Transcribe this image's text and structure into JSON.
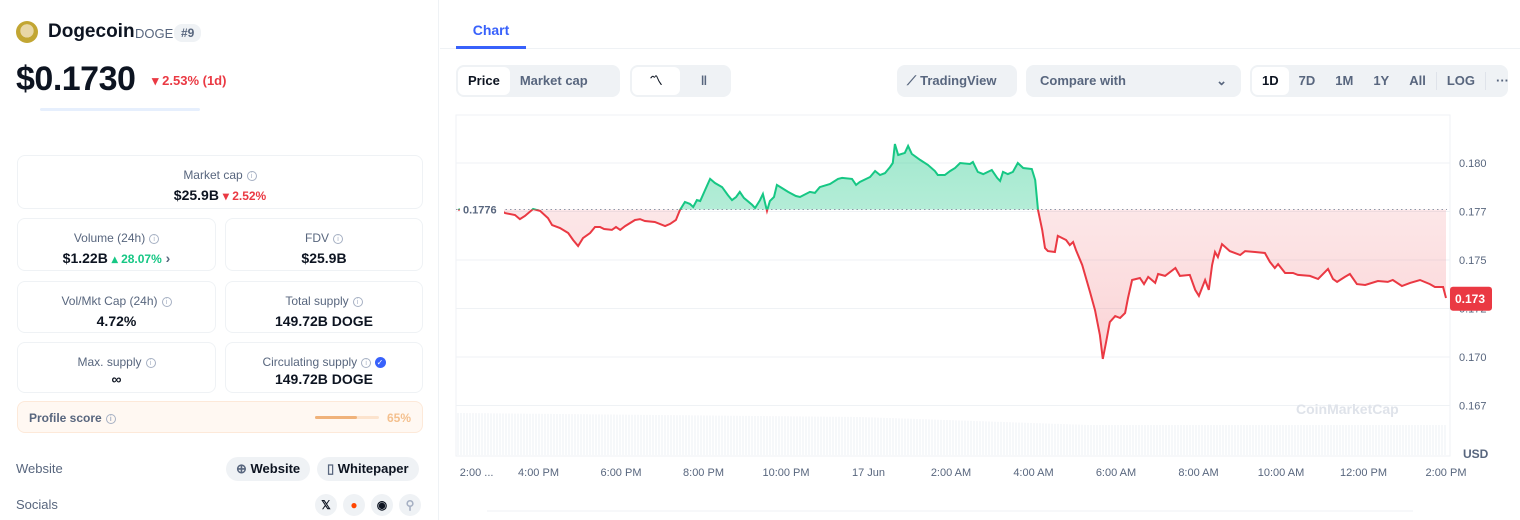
{
  "coin": {
    "name": "Dogecoin",
    "symbol": "DOGE",
    "rank": "#9",
    "price": "$0.1730",
    "change": "2.53% (1d)"
  },
  "stats": {
    "market_cap": {
      "label": "Market cap",
      "value": "$25.9B",
      "change": "2.52%"
    },
    "volume": {
      "label": "Volume (24h)",
      "value": "$1.22B",
      "change": "28.07%"
    },
    "fdv": {
      "label": "FDV",
      "value": "$25.9B"
    },
    "vol_mkt": {
      "label": "Vol/Mkt Cap (24h)",
      "value": "4.72%"
    },
    "total_supply": {
      "label": "Total supply",
      "value": "149.72B DOGE"
    },
    "max_supply": {
      "label": "Max. supply",
      "value": "∞"
    },
    "circ_supply": {
      "label": "Circulating supply",
      "value": "149.72B DOGE"
    },
    "profile_score": {
      "label": "Profile score",
      "value": "65%",
      "fraction": 0.65
    }
  },
  "links": {
    "website_label": "Website",
    "website_btn": "Website",
    "whitepaper_btn": "Whitepaper",
    "socials_label": "Socials",
    "socials": [
      "x-icon",
      "reddit-icon",
      "github-icon",
      "link-icon"
    ]
  },
  "tabs": {
    "chart": "Chart"
  },
  "toolbar": {
    "price": "Price",
    "market_cap": "Market cap",
    "tradingview": "TradingView",
    "compare": "Compare with",
    "ranges": [
      "1D",
      "7D",
      "1M",
      "1Y",
      "All"
    ],
    "log": "LOG",
    "more": "···"
  },
  "colors": {
    "up": "#16c784",
    "down": "#ea3943",
    "accent": "#3861fb"
  },
  "chart_data": {
    "type": "line",
    "currency": "USD",
    "watermark": "CoinMarketCap",
    "baseline": 0.1776,
    "baseline_label": "0.1776",
    "last": 0.173,
    "last_label": "0.173",
    "ylim": [
      0.1652,
      0.1826
    ],
    "yticks": [
      {
        "v": 0.18,
        "label": "0.180"
      },
      {
        "v": 0.1775,
        "label": "0.177"
      },
      {
        "v": 0.175,
        "label": "0.175"
      },
      {
        "v": 0.1725,
        "label": "0.172"
      },
      {
        "v": 0.17,
        "label": "0.170"
      },
      {
        "v": 0.1675,
        "label": "0.167"
      }
    ],
    "xticks": [
      {
        "h": 0.5,
        "label": "2:00 ..."
      },
      {
        "h": 2,
        "label": "4:00 PM"
      },
      {
        "h": 4,
        "label": "6:00 PM"
      },
      {
        "h": 6,
        "label": "8:00 PM"
      },
      {
        "h": 8,
        "label": "10:00 PM"
      },
      {
        "h": 10,
        "label": "17 Jun"
      },
      {
        "h": 12,
        "label": "2:00 AM"
      },
      {
        "h": 14,
        "label": "4:00 AM"
      },
      {
        "h": 16,
        "label": "6:00 AM"
      },
      {
        "h": 18,
        "label": "8:00 AM"
      },
      {
        "h": 20,
        "label": "10:00 AM"
      },
      {
        "h": 22,
        "label": "12:00 PM"
      },
      {
        "h": 24,
        "label": "2:00 PM"
      }
    ],
    "x_unit": "hours since 2:00 PM",
    "points": [
      [
        0.05,
        0.17758
      ],
      [
        0.34,
        0.17773
      ],
      [
        0.58,
        0.17763
      ],
      [
        1.07,
        0.17758
      ],
      [
        1.19,
        0.17742
      ],
      [
        1.43,
        0.17732
      ],
      [
        1.55,
        0.17711
      ],
      [
        1.67,
        0.17727
      ],
      [
        1.87,
        0.17763
      ],
      [
        2.04,
        0.17753
      ],
      [
        2.23,
        0.17716
      ],
      [
        2.33,
        0.1768
      ],
      [
        2.52,
        0.17665
      ],
      [
        2.72,
        0.17639
      ],
      [
        2.84,
        0.17603
      ],
      [
        2.96,
        0.17572
      ],
      [
        3.08,
        0.17613
      ],
      [
        3.25,
        0.17639
      ],
      [
        3.37,
        0.1767
      ],
      [
        3.49,
        0.1767
      ],
      [
        3.59,
        0.1766
      ],
      [
        3.78,
        0.17655
      ],
      [
        3.88,
        0.1767
      ],
      [
        3.98,
        0.17655
      ],
      [
        4.1,
        0.17675
      ],
      [
        4.34,
        0.17706
      ],
      [
        4.46,
        0.17711
      ],
      [
        4.58,
        0.17701
      ],
      [
        4.82,
        0.17696
      ],
      [
        5.07,
        0.17675
      ],
      [
        5.19,
        0.17686
      ],
      [
        5.33,
        0.17706
      ],
      [
        5.43,
        0.17758
      ],
      [
        5.55,
        0.17799
      ],
      [
        5.67,
        0.17789
      ],
      [
        5.75,
        0.17773
      ],
      [
        5.84,
        0.17809
      ],
      [
        5.92,
        0.17804
      ],
      [
        6.04,
        0.17861
      ],
      [
        6.16,
        0.17918
      ],
      [
        6.28,
        0.17897
      ],
      [
        6.45,
        0.17876
      ],
      [
        6.59,
        0.17835
      ],
      [
        6.69,
        0.17809
      ],
      [
        6.79,
        0.17825
      ],
      [
        6.88,
        0.17851
      ],
      [
        6.98,
        0.1782
      ],
      [
        7.18,
        0.17784
      ],
      [
        7.25,
        0.17768
      ],
      [
        7.37,
        0.17809
      ],
      [
        7.44,
        0.1784
      ],
      [
        7.54,
        0.17753
      ],
      [
        7.61,
        0.17804
      ],
      [
        7.71,
        0.17825
      ],
      [
        7.78,
        0.17887
      ],
      [
        7.9,
        0.17871
      ],
      [
        8.05,
        0.17851
      ],
      [
        8.24,
        0.1783
      ],
      [
        8.34,
        0.17825
      ],
      [
        8.58,
        0.17851
      ],
      [
        8.7,
        0.17846
      ],
      [
        8.82,
        0.17876
      ],
      [
        9.07,
        0.17892
      ],
      [
        9.26,
        0.17918
      ],
      [
        9.36,
        0.17923
      ],
      [
        9.6,
        0.17918
      ],
      [
        9.7,
        0.17887
      ],
      [
        9.79,
        0.17902
      ],
      [
        10.04,
        0.17928
      ],
      [
        10.16,
        0.17959
      ],
      [
        10.28,
        0.17938
      ],
      [
        10.4,
        0.17948
      ],
      [
        10.52,
        0.17979
      ],
      [
        10.59,
        0.18
      ],
      [
        10.64,
        0.18098
      ],
      [
        10.72,
        0.18041
      ],
      [
        10.88,
        0.18052
      ],
      [
        10.96,
        0.18088
      ],
      [
        11.05,
        0.18047
      ],
      [
        11.25,
        0.18016
      ],
      [
        11.44,
        0.1799
      ],
      [
        11.61,
        0.17959
      ],
      [
        11.68,
        0.17938
      ],
      [
        11.85,
        0.17938
      ],
      [
        11.98,
        0.17959
      ],
      [
        12.1,
        0.17974
      ],
      [
        12.22,
        0.18
      ],
      [
        12.46,
        0.17995
      ],
      [
        12.53,
        0.18005
      ],
      [
        12.65,
        0.17954
      ],
      [
        12.78,
        0.17943
      ],
      [
        12.99,
        0.17964
      ],
      [
        13.12,
        0.17923
      ],
      [
        13.19,
        0.17907
      ],
      [
        13.26,
        0.17954
      ],
      [
        13.38,
        0.17943
      ],
      [
        13.5,
        0.17954
      ],
      [
        13.62,
        0.18
      ],
      [
        13.75,
        0.17974
      ],
      [
        13.96,
        0.17969
      ],
      [
        14.04,
        0.17912
      ],
      [
        14.11,
        0.17758
      ],
      [
        14.21,
        0.17655
      ],
      [
        14.28,
        0.17562
      ],
      [
        14.35,
        0.17546
      ],
      [
        14.52,
        0.17541
      ],
      [
        14.59,
        0.17624
      ],
      [
        14.79,
        0.17603
      ],
      [
        14.88,
        0.17577
      ],
      [
        14.96,
        0.17593
      ],
      [
        15.03,
        0.17551
      ],
      [
        15.18,
        0.17474
      ],
      [
        15.37,
        0.17335
      ],
      [
        15.49,
        0.17242
      ],
      [
        15.61,
        0.17113
      ],
      [
        15.68,
        0.1699
      ],
      [
        15.76,
        0.17077
      ],
      [
        15.85,
        0.1718
      ],
      [
        15.98,
        0.17211
      ],
      [
        16.1,
        0.17201
      ],
      [
        16.22,
        0.17227
      ],
      [
        16.29,
        0.17304
      ],
      [
        16.39,
        0.17397
      ],
      [
        16.58,
        0.17407
      ],
      [
        16.68,
        0.17376
      ],
      [
        16.78,
        0.17413
      ],
      [
        16.95,
        0.17382
      ],
      [
        17.02,
        0.17428
      ],
      [
        17.19,
        0.17418
      ],
      [
        17.44,
        0.17459
      ],
      [
        17.55,
        0.17418
      ],
      [
        17.79,
        0.17423
      ],
      [
        17.92,
        0.17346
      ],
      [
        18.01,
        0.17315
      ],
      [
        18.16,
        0.17397
      ],
      [
        18.25,
        0.17346
      ],
      [
        18.33,
        0.17474
      ],
      [
        18.4,
        0.17541
      ],
      [
        18.47,
        0.17515
      ],
      [
        18.57,
        0.17582
      ],
      [
        18.76,
        0.17546
      ],
      [
        19.01,
        0.17526
      ],
      [
        19.13,
        0.17546
      ],
      [
        19.37,
        0.17541
      ],
      [
        19.61,
        0.17536
      ],
      [
        19.73,
        0.1749
      ],
      [
        19.85,
        0.17459
      ],
      [
        19.93,
        0.17479
      ],
      [
        20.1,
        0.17433
      ],
      [
        20.29,
        0.17433
      ],
      [
        20.41,
        0.17423
      ],
      [
        20.7,
        0.17418
      ],
      [
        20.9,
        0.17402
      ],
      [
        21.14,
        0.17454
      ],
      [
        21.26,
        0.17402
      ],
      [
        21.36,
        0.17387
      ],
      [
        21.55,
        0.17413
      ],
      [
        21.67,
        0.17428
      ],
      [
        21.84,
        0.17376
      ],
      [
        22.04,
        0.17371
      ],
      [
        22.35,
        0.17392
      ],
      [
        22.59,
        0.17387
      ],
      [
        22.71,
        0.17397
      ],
      [
        22.93,
        0.17366
      ],
      [
        23.13,
        0.17382
      ],
      [
        23.37,
        0.17397
      ],
      [
        23.61,
        0.17376
      ],
      [
        23.73,
        0.17361
      ],
      [
        23.93,
        0.17361
      ],
      [
        24.0,
        0.17304
      ]
    ]
  }
}
